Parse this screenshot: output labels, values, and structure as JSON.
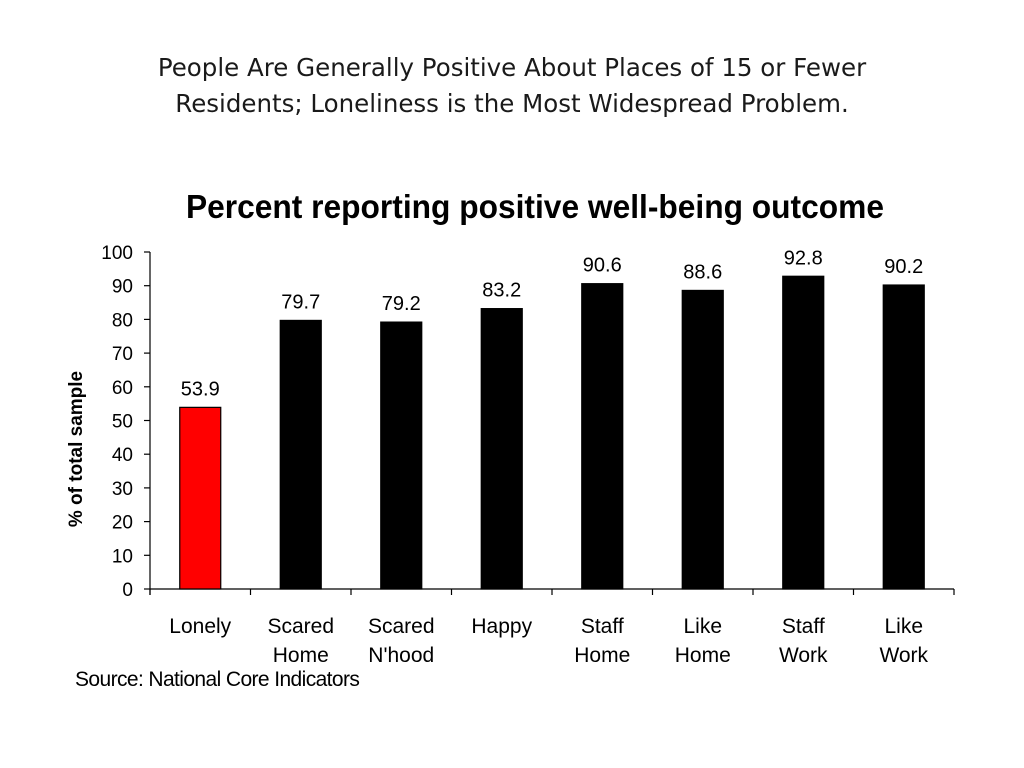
{
  "slide": {
    "title_line1": "People Are Generally Positive About Places of 15 or Fewer",
    "title_line2": "Residents;  Loneliness is the Most Widespread Problem."
  },
  "source_note": "Source: National Core Indicators",
  "chart_data": {
    "type": "bar",
    "title": "Percent reporting positive well-being outcome",
    "ylabel": "% of total sample",
    "xlabel": "",
    "ylim": [
      0,
      100
    ],
    "yticks": [
      0,
      10,
      20,
      30,
      40,
      50,
      60,
      70,
      80,
      90,
      100
    ],
    "grid": false,
    "legend": "none",
    "categories": [
      [
        "Lonely"
      ],
      [
        "Scared",
        "Home"
      ],
      [
        "Scared",
        "N'hood"
      ],
      [
        "Happy"
      ],
      [
        "Staff",
        "Home"
      ],
      [
        "Like",
        "Home"
      ],
      [
        "Staff",
        "Work"
      ],
      [
        "Like",
        "Work"
      ]
    ],
    "values": [
      53.9,
      79.7,
      79.2,
      83.2,
      90.6,
      88.6,
      92.8,
      90.2
    ],
    "value_labels": [
      "53.9",
      "79.7",
      "79.2",
      "83.2",
      "90.6",
      "88.6",
      "92.8",
      "90.2"
    ],
    "bar_colors": [
      "#ff0000",
      "#000000",
      "#000000",
      "#000000",
      "#000000",
      "#000000",
      "#000000",
      "#000000"
    ]
  }
}
